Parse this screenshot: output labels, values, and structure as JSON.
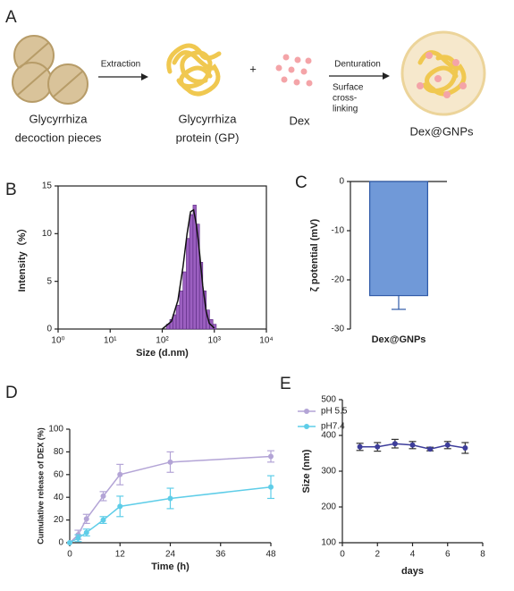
{
  "panel_a": {
    "label": "A",
    "extraction": "Extraction",
    "plus": "+",
    "denturation": "Denturation",
    "surface": [
      "Surface",
      "cross-",
      "linking"
    ],
    "pieces": [
      "Glycyrrhiza",
      "decoction pieces"
    ],
    "protein": [
      "Glycyrrhiza",
      "protein (GP)"
    ],
    "dex": "Dex",
    "product": "Dex@GNPs"
  },
  "chart_data": [
    {
      "type": "histogram",
      "panel": "B",
      "xlabel": "Size (d.nm)",
      "ylabel": "Intensity（%）",
      "xlog": true,
      "frame": true,
      "color": "#9b5fc0",
      "bins": [
        120,
        140,
        160,
        185,
        215,
        250,
        290,
        335,
        390,
        450,
        520,
        600,
        700,
        810,
        940,
        1090
      ],
      "values": [
        0.5,
        1,
        1.5,
        2.5,
        4,
        6,
        9.5,
        12,
        13,
        11,
        7,
        4,
        2,
        1,
        0.5
      ],
      "fit": {
        "color": "#111111",
        "x": [
          100,
          150,
          200,
          250,
          300,
          350,
          400,
          450,
          500,
          600,
          700,
          800,
          1000
        ],
        "values": [
          0,
          0.8,
          3,
          6.5,
          10,
          12.3,
          12.5,
          11,
          9,
          4.5,
          1.8,
          0.6,
          0.1
        ]
      },
      "xlim": [
        1,
        10000
      ],
      "xticks": [
        {
          "value": 1,
          "label": "10⁰"
        },
        {
          "value": 10,
          "label": "10¹"
        },
        {
          "value": 100,
          "label": "10²"
        },
        {
          "value": 1000,
          "label": "10³"
        },
        {
          "value": 10000,
          "label": "10⁴"
        }
      ],
      "ylim": [
        0,
        15
      ],
      "yticks": [
        0,
        5,
        10,
        15
      ]
    },
    {
      "type": "bar",
      "panel": "C",
      "ylabel": "ζ potential (mV)",
      "categories": [
        "Dex@GNPs"
      ],
      "values": [
        -23.2
      ],
      "errors": [
        2.8
      ],
      "color": "#7099d8",
      "ylim": [
        -30,
        0
      ],
      "yticks": [
        0,
        -10,
        -20,
        -30
      ]
    },
    {
      "type": "line",
      "panel": "D",
      "xlabel": "Time (h)",
      "ylabel": "Cumulative release of DEX (%)",
      "legend": "upper right",
      "x": [
        0,
        2,
        4,
        8,
        12,
        24,
        48
      ],
      "series": [
        {
          "name": "pH 5.5",
          "color": "#b3a4d6",
          "values": [
            0,
            7,
            21,
            41,
            60,
            71,
            76
          ],
          "errors": [
            0,
            4,
            4,
            4,
            9,
            9,
            5
          ]
        },
        {
          "name": "pH7.4",
          "color": "#5ecde8",
          "values": [
            0,
            4,
            9,
            20,
            32,
            39,
            49
          ],
          "errors": [
            0,
            3,
            3,
            3,
            9,
            9,
            10
          ]
        }
      ],
      "xlim": [
        0,
        48
      ],
      "xticks": [
        0,
        12,
        24,
        36,
        48
      ],
      "ylim": [
        0,
        100
      ],
      "yticks": [
        0,
        20,
        40,
        60,
        80,
        100
      ]
    },
    {
      "type": "line",
      "panel": "E",
      "xlabel": "days",
      "ylabel": "Size (nm)",
      "x": [
        1,
        2,
        3,
        4,
        5,
        6,
        7
      ],
      "series": [
        {
          "color": "#3d3d9a",
          "values": [
            368,
            368,
            377,
            373,
            362,
            373,
            365
          ],
          "errors": [
            10,
            12,
            12,
            10,
            5,
            10,
            15
          ]
        }
      ],
      "xlim": [
        0,
        8
      ],
      "xticks": [
        0,
        2,
        4,
        6,
        8
      ],
      "ylim": [
        100,
        500
      ],
      "yticks": [
        100,
        200,
        300,
        400,
        500
      ]
    }
  ]
}
